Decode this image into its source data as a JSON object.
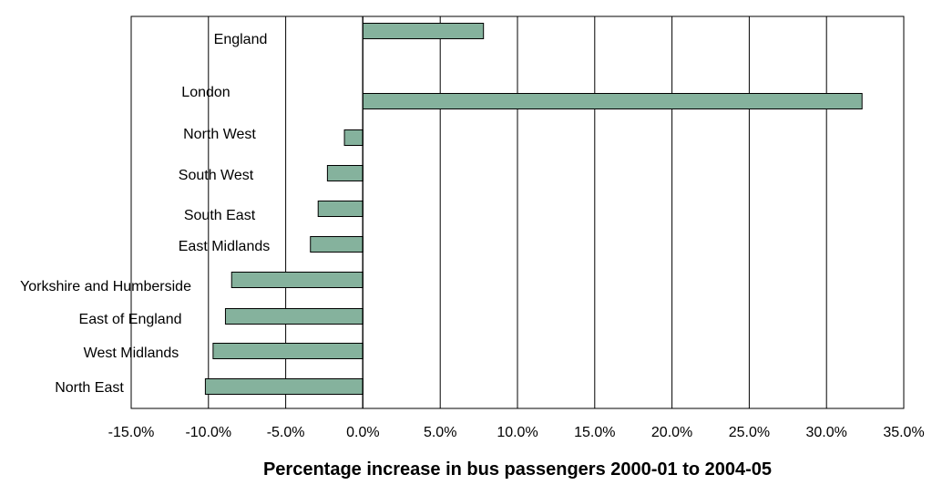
{
  "chart_data": {
    "type": "bar",
    "orientation": "horizontal",
    "title": "",
    "xlabel": "Percentage increase in bus passengers 2000-01 to 2004-05",
    "ylabel": "",
    "xlim": [
      -15,
      35
    ],
    "x_ticks": [
      "-15.0%",
      "-10.0%",
      "-5.0%",
      "0.0%",
      "5.0%",
      "10.0%",
      "15.0%",
      "20.0%",
      "25.0%",
      "30.0%",
      "35.0%"
    ],
    "grid": "vertical",
    "legend": "none",
    "bar_color": "#85B29D",
    "categories": [
      "England",
      "London",
      "North West",
      "South West",
      "South East",
      "East Midlands",
      "Yorkshire and Humberside",
      "East of England",
      "West Midlands",
      "North East"
    ],
    "values": [
      7.8,
      32.3,
      -1.2,
      -2.3,
      -2.9,
      -3.4,
      -8.5,
      -8.9,
      -9.7,
      -10.2
    ]
  }
}
